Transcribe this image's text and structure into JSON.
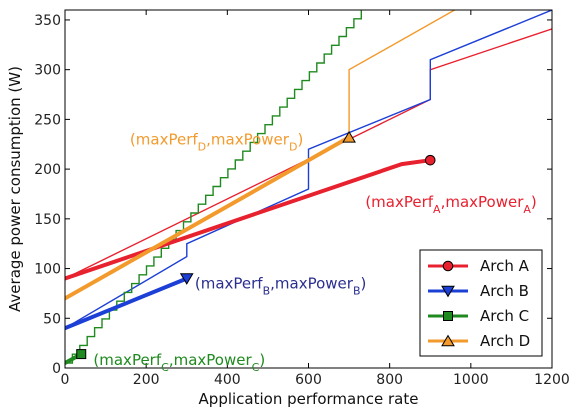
{
  "chart_data": {
    "type": "line",
    "xlabel": "Application performance rate",
    "ylabel": "Average power consumption (W)",
    "xlim": [
      0,
      1200
    ],
    "ylim": [
      0,
      360
    ],
    "xticks": [
      0,
      200,
      400,
      600,
      800,
      1000,
      1200
    ],
    "yticks": [
      0,
      50,
      100,
      150,
      200,
      250,
      300,
      350
    ],
    "grid": false,
    "legend_position": "lower-right",
    "series": [
      {
        "name": "Arch A",
        "color": "#e8212f",
        "marker": "circle",
        "thin": [
          [
            0,
            90
          ],
          [
            900,
            270
          ],
          [
            900,
            300
          ],
          [
            1200,
            341
          ]
        ],
        "thick": [
          [
            0,
            90
          ],
          [
            830,
            205
          ],
          [
            900,
            209
          ]
        ],
        "max_point": [
          900,
          209
        ],
        "annotation": {
          "main1": "(maxPerf",
          "sub1": "A",
          "main2": ",maxPower",
          "sub2": "A",
          "end": ")",
          "at": [
            740,
            162
          ],
          "color": "#e8212f"
        }
      },
      {
        "name": "Arch B",
        "color": "#1c3fd6",
        "marker": "triangle-down",
        "thin": [
          [
            0,
            40
          ],
          [
            300,
            112
          ],
          [
            300,
            125
          ],
          [
            600,
            180
          ],
          [
            600,
            220
          ],
          [
            900,
            270
          ],
          [
            900,
            310
          ],
          [
            1200,
            360
          ]
        ],
        "thick": [
          [
            0,
            40
          ],
          [
            300,
            90
          ]
        ],
        "max_point": [
          300,
          90
        ],
        "annotation": {
          "main1": "(maxPerf",
          "sub1": "B",
          "main2": ",maxPower",
          "sub2": "B",
          "end": ")",
          "at": [
            320,
            80
          ],
          "color": "#2a2f8f"
        }
      },
      {
        "name": "Arch C",
        "color": "#1f8a1f",
        "marker": "square",
        "thin": [
          [
            0,
            5
          ],
          [
            730,
            360
          ]
        ],
        "thin_stepped": true,
        "thick": [
          [
            0,
            5
          ],
          [
            40,
            14
          ]
        ],
        "max_point": [
          40,
          14
        ],
        "annotation": {
          "main1": "(maxPerf",
          "sub1": "C",
          "main2": ",maxPower",
          "sub2": "C",
          "end": ")",
          "at": [
            70,
            3
          ],
          "color": "#1f8a1f"
        }
      },
      {
        "name": "Arch D",
        "color": "#f39a2d",
        "marker": "triangle-up",
        "thin": [
          [
            0,
            70
          ],
          [
            700,
            232
          ],
          [
            700,
            300
          ],
          [
            960,
            360
          ]
        ],
        "thick": [
          [
            0,
            70
          ],
          [
            700,
            232
          ]
        ],
        "max_point": [
          700,
          232
        ],
        "annotation": {
          "main1": "(maxPerf",
          "sub1": "D",
          "main2": ",maxPower",
          "sub2": "D",
          "end": ")",
          "at": [
            160,
            225
          ],
          "color": "#f39a2d"
        }
      }
    ]
  }
}
